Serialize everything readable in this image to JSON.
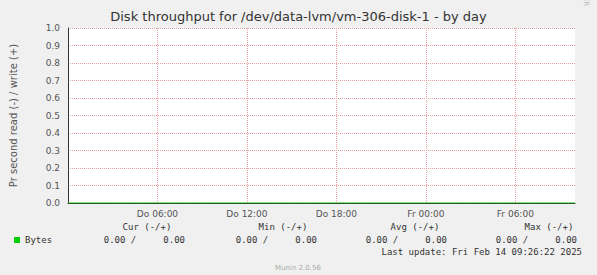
{
  "chart_data": {
    "type": "line",
    "title": "Disk throughput for /dev/data-lvm/vm-306-disk-1 - by day",
    "y_label": "Pr second read (-) / write (+)",
    "categories": [
      null,
      null,
      null,
      null,
      null,
      null,
      "Do 06:00",
      null,
      null,
      null,
      null,
      null,
      "Do 12:00",
      null,
      null,
      null,
      null,
      null,
      "Do 18:00",
      null,
      null,
      null,
      null,
      null,
      "Fr 00:00",
      null,
      null,
      null,
      null,
      null,
      "Fr 06:00",
      null,
      null,
      null,
      null
    ],
    "series": [
      {
        "name": "Bytes",
        "color": "#00cc00",
        "values": [
          0,
          0,
          0,
          0,
          0,
          0,
          0,
          0,
          0,
          0,
          0,
          0,
          0,
          0,
          0,
          0,
          0,
          0,
          0,
          0,
          0,
          0,
          0,
          0,
          0,
          0,
          0,
          0,
          0,
          0,
          0,
          0,
          0,
          0,
          0
        ]
      }
    ],
    "ylim": [
      0,
      1
    ],
    "yticks": [
      {
        "value": 0,
        "label": "0.0"
      },
      {
        "value": 0.1,
        "label": "0.1"
      },
      {
        "value": 0.2,
        "label": "0.2"
      },
      {
        "value": 0.3,
        "label": "0.3"
      },
      {
        "value": 0.4,
        "label": "0.4"
      },
      {
        "value": 0.5,
        "label": "0.5"
      },
      {
        "value": 0.6,
        "label": "0.6"
      },
      {
        "value": 0.7,
        "label": "0.7"
      },
      {
        "value": 0.8,
        "label": "0.8"
      },
      {
        "value": 0.9,
        "label": "0.9"
      },
      {
        "value": 1,
        "label": "1.0"
      }
    ],
    "grid": true,
    "legend_table": {
      "headers": [
        "Cur (-/+)",
        "Min (-/+)",
        "Avg (-/+)",
        "Max (-/+)"
      ],
      "rows": [
        {
          "name": "Bytes",
          "cells": [
            "0.00 /     0.00",
            "0.00 /     0.00",
            "0.00 /     0.00",
            "0.00 /     0.00"
          ]
        }
      ]
    },
    "last_update": "Last update: Fri Feb 14 09:26:22 2025",
    "footer": "Munin 2.0.56",
    "side_text": "RRDTOOL / TOBI OETIKER"
  }
}
